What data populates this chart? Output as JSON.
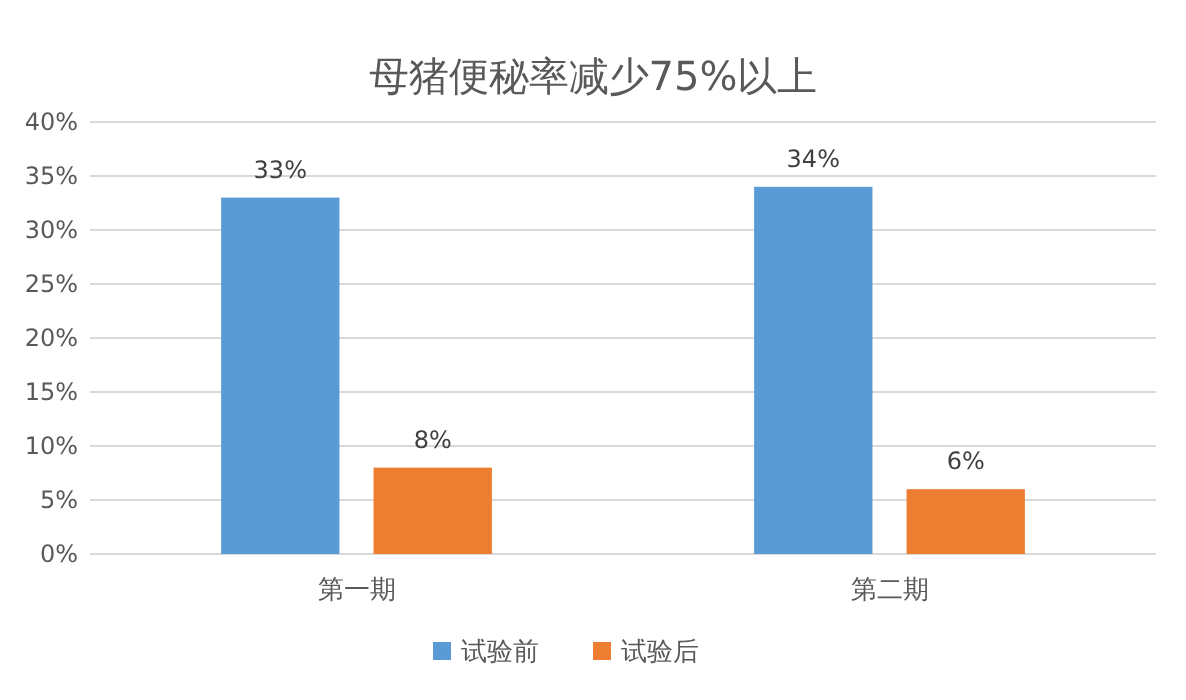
{
  "chart_data": {
    "type": "bar",
    "title": "母猪便秘率减少75%以上",
    "categories": [
      "第一期",
      "第二期"
    ],
    "series": [
      {
        "name": "试验前",
        "color": "#5b9bd5",
        "values": [
          33,
          34
        ],
        "value_labels": [
          "33%",
          "34%"
        ]
      },
      {
        "name": "试验后",
        "color": "#ed7d31",
        "values": [
          8,
          6
        ],
        "value_labels": [
          "8%",
          "6%"
        ]
      }
    ],
    "ylim": [
      0,
      40
    ],
    "yticks": [
      {
        "value": 0,
        "label": "0%"
      },
      {
        "value": 5,
        "label": "5%"
      },
      {
        "value": 10,
        "label": "10%"
      },
      {
        "value": 15,
        "label": "15%"
      },
      {
        "value": 20,
        "label": "20%"
      },
      {
        "value": 25,
        "label": "25%"
      },
      {
        "value": 30,
        "label": "30%"
      },
      {
        "value": 35,
        "label": "35%"
      },
      {
        "value": 40,
        "label": "40%"
      }
    ],
    "grid": "y",
    "legend": "bottom"
  }
}
